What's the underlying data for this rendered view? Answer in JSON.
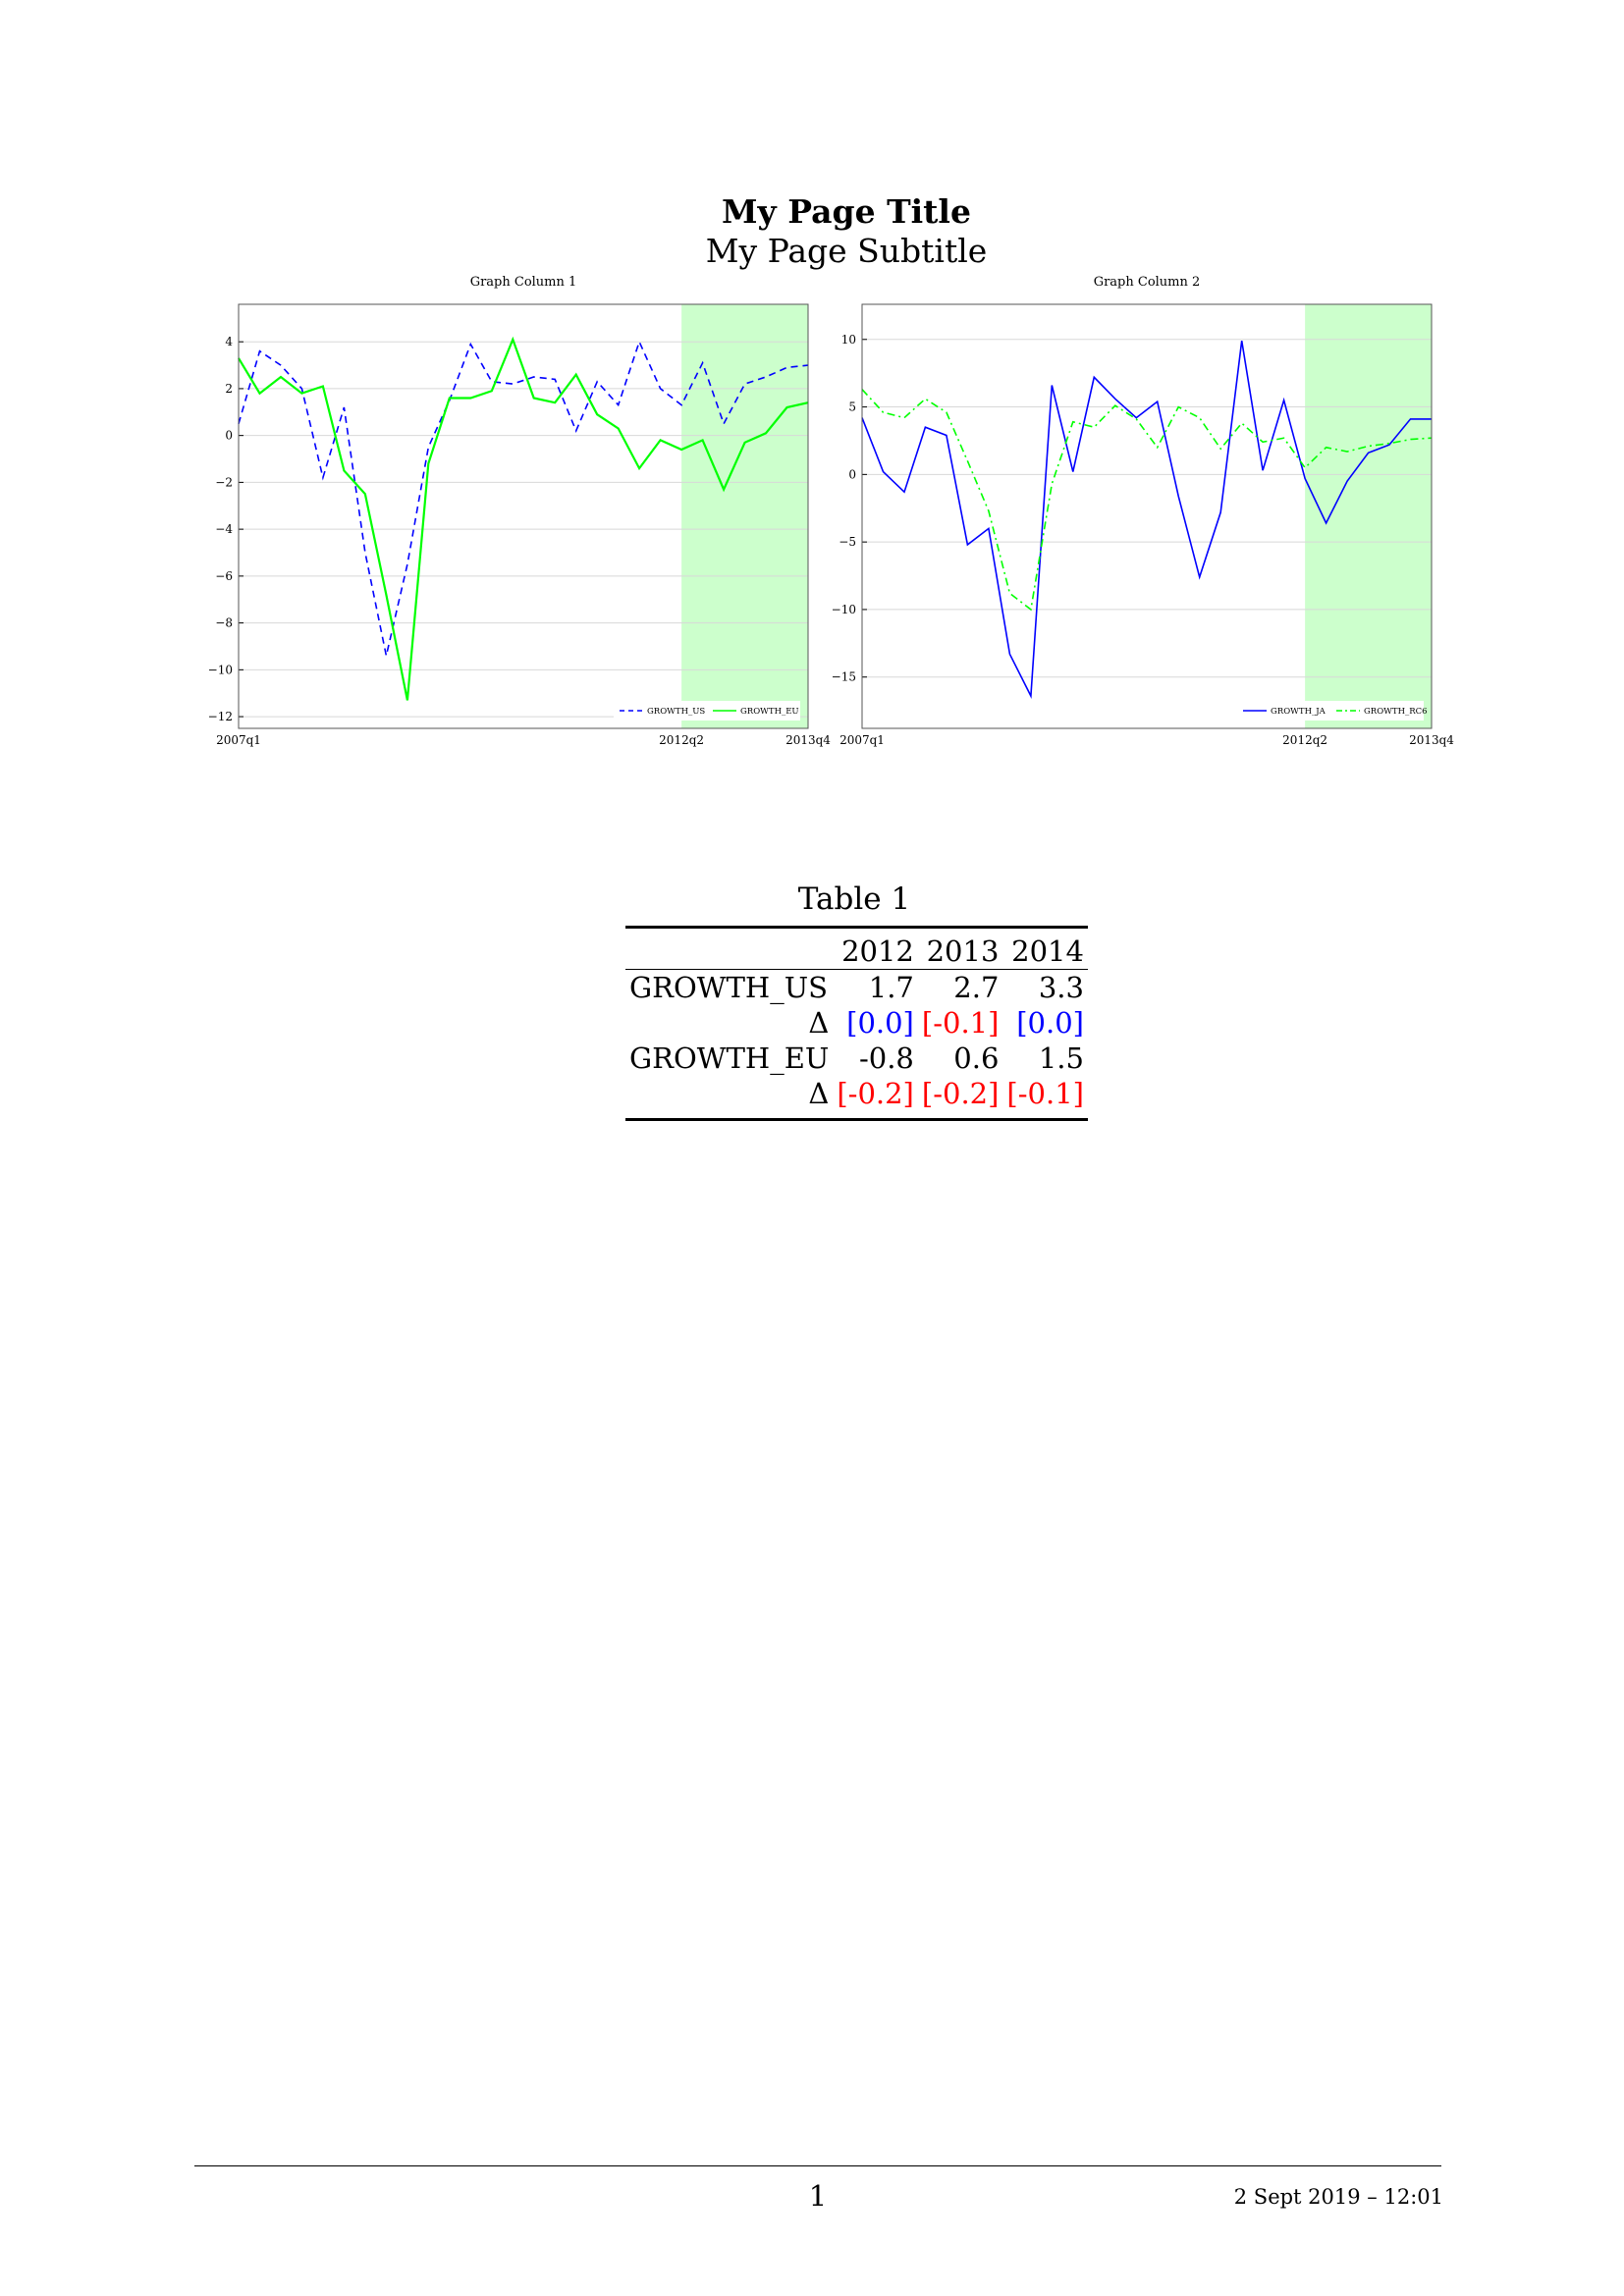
{
  "page": {
    "title": "My Page Title",
    "subtitle": "My Page Subtitle"
  },
  "chart_data": [
    {
      "type": "line",
      "title": "Graph Column 1",
      "x": [
        "2007q1",
        "2007q2",
        "2007q3",
        "2007q4",
        "2008q1",
        "2008q2",
        "2008q3",
        "2008q4",
        "2009q1",
        "2009q2",
        "2009q3",
        "2009q4",
        "2010q1",
        "2010q2",
        "2010q3",
        "2010q4",
        "2011q1",
        "2011q2",
        "2011q3",
        "2011q4",
        "2012q1",
        "2012q2",
        "2012q3",
        "2012q4",
        "2013q1",
        "2013q2",
        "2013q3",
        "2013q4"
      ],
      "x_tick_labels": [
        "2007q1",
        "2012q2",
        "2013q4"
      ],
      "y_ticks": [
        4,
        2,
        0,
        -2,
        -4,
        -6,
        -8,
        -10,
        -12
      ],
      "y_tick_labels": [
        "4",
        "2",
        "0",
        "−2",
        "−4",
        "−6",
        "−8",
        "−10",
        "−12"
      ],
      "ylim": [
        -12.5,
        5.6
      ],
      "grid": true,
      "shaded_region": {
        "from": "2012q2",
        "to": "2013q4",
        "color": "#ccffcc"
      },
      "legend": "bottom-right",
      "series": [
        {
          "name": "GROWTH_US",
          "color": "#0000ff",
          "dash": "dashed",
          "values": [
            0.5,
            3.6,
            3.0,
            2.0,
            -1.8,
            1.2,
            -5.0,
            -9.4,
            -5.5,
            -0.5,
            1.5,
            3.9,
            2.3,
            2.2,
            2.5,
            2.4,
            0.2,
            2.3,
            1.3,
            4.0,
            2.0,
            1.3,
            3.1,
            0.5,
            2.2,
            2.5,
            2.9,
            3.0
          ]
        },
        {
          "name": "GROWTH_EU",
          "color": "#00ff00",
          "dash": "solid",
          "values": [
            3.3,
            1.8,
            2.5,
            1.8,
            2.1,
            -1.5,
            -2.5,
            -6.8,
            -11.3,
            -1.2,
            1.6,
            1.6,
            1.9,
            4.1,
            1.6,
            1.4,
            2.6,
            0.9,
            0.3,
            -1.4,
            -0.2,
            -0.6,
            -0.2,
            -2.3,
            -0.3,
            0.1,
            1.2,
            1.4
          ]
        }
      ]
    },
    {
      "type": "line",
      "title": "Graph Column 2",
      "x": [
        "2007q1",
        "2007q2",
        "2007q3",
        "2007q4",
        "2008q1",
        "2008q2",
        "2008q3",
        "2008q4",
        "2009q1",
        "2009q2",
        "2009q3",
        "2009q4",
        "2010q1",
        "2010q2",
        "2010q3",
        "2010q4",
        "2011q1",
        "2011q2",
        "2011q3",
        "2011q4",
        "2012q1",
        "2012q2",
        "2012q3",
        "2012q4",
        "2013q1",
        "2013q2",
        "2013q3",
        "2013q4"
      ],
      "x_tick_labels": [
        "2007q1",
        "2012q2",
        "2013q4"
      ],
      "y_ticks": [
        10,
        5,
        0,
        -5,
        -10,
        -15
      ],
      "y_tick_labels": [
        "10",
        "5",
        "0",
        "−5",
        "−10",
        "−15"
      ],
      "ylim": [
        -18.8,
        12.6
      ],
      "grid": true,
      "shaded_region": {
        "from": "2012q2",
        "to": "2013q4",
        "color": "#ccffcc"
      },
      "legend": "bottom-right",
      "series": [
        {
          "name": "GROWTH_JA",
          "color": "#0000ff",
          "dash": "solid",
          "values": [
            4.2,
            0.2,
            -1.3,
            3.5,
            2.9,
            -5.2,
            -4.0,
            -13.3,
            -16.4,
            6.6,
            0.2,
            7.2,
            5.6,
            4.2,
            5.4,
            -1.6,
            -7.6,
            -2.8,
            9.9,
            0.3,
            5.5,
            -0.3,
            -3.6,
            -0.5,
            1.6,
            2.2,
            4.1,
            4.1
          ]
        },
        {
          "name": "GROWTH_RC6",
          "color": "#00ff00",
          "dash": "dashdot",
          "values": [
            6.3,
            4.6,
            4.2,
            5.6,
            4.6,
            1.0,
            -2.7,
            -8.8,
            -10.0,
            -0.7,
            3.9,
            3.5,
            5.1,
            4.1,
            2.0,
            5.0,
            4.2,
            1.9,
            3.8,
            2.4,
            2.7,
            0.5,
            2.0,
            1.7,
            2.1,
            2.3,
            2.6,
            2.7
          ]
        }
      ]
    }
  ],
  "table": {
    "caption": "Table 1",
    "columns": [
      "2012",
      "2013",
      "2014"
    ],
    "rows": [
      {
        "label": "GROWTH_US",
        "values": [
          "1.7",
          "2.7",
          "3.3"
        ],
        "delta_label": "Δ",
        "deltas": [
          "[0.0]",
          "[-0.1]",
          "[0.0]"
        ],
        "delta_colors": [
          "#0000ff",
          "#ff0000",
          "#0000ff"
        ]
      },
      {
        "label": "GROWTH_EU",
        "values": [
          "-0.8",
          "0.6",
          "1.5"
        ],
        "delta_label": "Δ",
        "deltas": [
          "[-0.2]",
          "[-0.2]",
          "[-0.1]"
        ],
        "delta_colors": [
          "#ff0000",
          "#ff0000",
          "#ff0000"
        ]
      }
    ]
  },
  "footer": {
    "page_number": "1",
    "date": "2 Sept 2019 – 12:01"
  }
}
